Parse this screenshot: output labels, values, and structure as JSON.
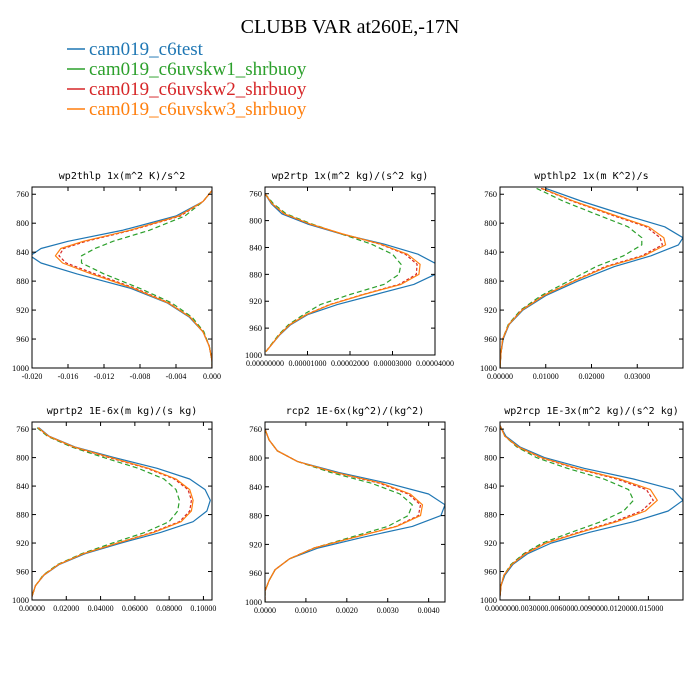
{
  "figure": {
    "title": "CLUBB VAR at260E,-17N",
    "legend": [
      {
        "name": "cam019_c6test",
        "color": "#1f77b4"
      },
      {
        "name": "cam019_c6uvskw1_shrbuoy",
        "color": "#2ca02c"
      },
      {
        "name": "cam019_c6uvskw2_shrbuoy",
        "color": "#d62728"
      },
      {
        "name": "cam019_c6uvskw3_shrbuoy",
        "color": "#ff7f0e"
      }
    ]
  },
  "chart_data": [
    {
      "type": "line",
      "title": "wp2thlp  1x(m^2 K)/s^2",
      "xlim": [
        -0.02,
        0.0
      ],
      "ylim": [
        1000,
        750
      ],
      "x_ticks": [
        "-0.020",
        "-0.016",
        "-0.012",
        "-0.008",
        "-0.004",
        "0.000"
      ],
      "x_tick_values": [
        -0.02,
        -0.016,
        -0.012,
        -0.008,
        -0.004,
        0.0
      ],
      "y_ticks": [
        "760",
        "800",
        "840",
        "880",
        "920",
        "960",
        "1000"
      ],
      "y_tick_values": [
        760,
        800,
        840,
        880,
        920,
        960,
        1000
      ],
      "y": [
        755,
        770,
        790,
        810,
        825,
        835,
        845,
        855,
        870,
        890,
        910,
        930,
        950,
        970,
        990,
        1000
      ],
      "series": [
        {
          "name": "cam019_c6test",
          "color": "#1f77b4",
          "dash": "",
          "values": [
            0.0,
            -0.001,
            -0.004,
            -0.01,
            -0.016,
            -0.019,
            -0.0202,
            -0.019,
            -0.015,
            -0.009,
            -0.005,
            -0.0025,
            -0.001,
            -0.0003,
            0.0,
            0.0
          ]
        },
        {
          "name": "cam019_c6uvskw1_shrbuoy",
          "color": "#2ca02c",
          "dash": "5,3",
          "values": [
            0.0,
            -0.001,
            -0.003,
            -0.007,
            -0.011,
            -0.013,
            -0.0145,
            -0.0145,
            -0.012,
            -0.008,
            -0.0045,
            -0.0022,
            -0.0009,
            -0.0003,
            0.0,
            0.0
          ]
        },
        {
          "name": "cam019_c6uvskw2_shrbuoy",
          "color": "#d62728",
          "dash": "3,2",
          "values": [
            0.0,
            -0.001,
            -0.0035,
            -0.009,
            -0.014,
            -0.0165,
            -0.017,
            -0.0162,
            -0.013,
            -0.0085,
            -0.0048,
            -0.0024,
            -0.001,
            -0.0003,
            0.0,
            0.0
          ]
        },
        {
          "name": "cam019_c6uvskw3_shrbuoy",
          "color": "#ff7f0e",
          "dash": "",
          "values": [
            0.0,
            -0.001,
            -0.0037,
            -0.0092,
            -0.0143,
            -0.0168,
            -0.0174,
            -0.0166,
            -0.0134,
            -0.0087,
            -0.0049,
            -0.0024,
            -0.001,
            -0.0003,
            0.0,
            0.0
          ]
        }
      ]
    },
    {
      "type": "line",
      "title": "wp2rtp  1x(m^2 kg)/(s^2 kg)",
      "xlim": [
        0.0,
        4e-05
      ],
      "ylim": [
        1000,
        750
      ],
      "x_ticks": [
        "0.00000000",
        "0.00001000",
        "0.00002000",
        "0.00003000",
        "0.00004000"
      ],
      "x_tick_values": [
        0.0,
        1e-05,
        2e-05,
        3e-05,
        4e-05
      ],
      "y_ticks": [
        "760",
        "800",
        "840",
        "880",
        "920",
        "960",
        "1000"
      ],
      "y_tick_values": [
        760,
        800,
        840,
        880,
        920,
        960,
        1000
      ],
      "y": [
        760,
        775,
        790,
        805,
        820,
        835,
        850,
        865,
        880,
        895,
        910,
        925,
        940,
        955,
        970,
        985,
        995
      ],
      "series": [
        {
          "name": "cam019_c6test",
          "color": "#1f77b4",
          "dash": "",
          "values": [
            0.0,
            1.5e-06,
            4e-06,
            1e-05,
            1.8e-05,
            2.8e-05,
            3.6e-05,
            4.05e-05,
            4e-05,
            3.5e-05,
            2.6e-05,
            1.7e-05,
            1e-05,
            6e-06,
            3.5e-06,
            1.5e-06,
            2e-07
          ]
        },
        {
          "name": "cam019_c6uvskw1_shrbuoy",
          "color": "#2ca02c",
          "dash": "5,3",
          "values": [
            0.0,
            2e-06,
            5e-06,
            1.1e-05,
            1.8e-05,
            2.5e-05,
            3e-05,
            3.2e-05,
            3.15e-05,
            2.8e-05,
            2e-05,
            1.3e-05,
            9e-06,
            5.5e-06,
            3.2e-06,
            1.4e-06,
            2e-07
          ]
        },
        {
          "name": "cam019_c6uvskw2_shrbuoy",
          "color": "#d62728",
          "dash": "3,2",
          "values": [
            0.0,
            1.7e-06,
            4.5e-06,
            1.05e-05,
            1.82e-05,
            2.7e-05,
            3.3e-05,
            3.58e-05,
            3.56e-05,
            3.15e-05,
            2.3e-05,
            1.52e-05,
            9.6e-06,
            5.8e-06,
            3.4e-06,
            1.5e-06,
            2e-07
          ]
        },
        {
          "name": "cam019_c6uvskw3_shrbuoy",
          "color": "#ff7f0e",
          "dash": "",
          "values": [
            0.0,
            1.7e-06,
            4.6e-06,
            1.06e-05,
            1.83e-05,
            2.72e-05,
            3.35e-05,
            3.65e-05,
            3.62e-05,
            3.2e-05,
            2.32e-05,
            1.54e-05,
            9.7e-06,
            5.8e-06,
            3.4e-06,
            1.5e-06,
            2e-07
          ]
        }
      ]
    },
    {
      "type": "line",
      "title": "wpthlp2  1x(m K^2)/s",
      "xlim": [
        0.0,
        0.04
      ],
      "ylim": [
        1000,
        750
      ],
      "x_ticks": [
        "0.00000",
        "0.01000",
        "0.02000",
        "0.03000"
      ],
      "x_tick_values": [
        0.0,
        0.01,
        0.02,
        0.03
      ],
      "y_ticks": [
        "760",
        "800",
        "840",
        "880",
        "920",
        "960",
        "1000"
      ],
      "y_tick_values": [
        760,
        800,
        840,
        880,
        920,
        960,
        1000
      ],
      "y": [
        752,
        770,
        790,
        805,
        820,
        830,
        845,
        860,
        880,
        900,
        920,
        940,
        960,
        980,
        1000
      ],
      "series": [
        {
          "name": "cam019_c6test",
          "color": "#1f77b4",
          "dash": "",
          "values": [
            0.01,
            0.018,
            0.028,
            0.036,
            0.04,
            0.039,
            0.033,
            0.025,
            0.017,
            0.01,
            0.005,
            0.002,
            0.0007,
            0.0002,
            0.0
          ]
        },
        {
          "name": "cam019_c6uvskw1_shrbuoy",
          "color": "#2ca02c",
          "dash": "5,3",
          "values": [
            0.008,
            0.014,
            0.022,
            0.028,
            0.031,
            0.031,
            0.027,
            0.021,
            0.015,
            0.009,
            0.0045,
            0.0018,
            0.0006,
            0.0002,
            0.0
          ]
        },
        {
          "name": "cam019_c6uvskw2_shrbuoy",
          "color": "#d62728",
          "dash": "3,2",
          "values": [
            0.009,
            0.016,
            0.025,
            0.032,
            0.035,
            0.0355,
            0.031,
            0.023,
            0.016,
            0.0095,
            0.0047,
            0.0019,
            0.0006,
            0.0002,
            0.0
          ]
        },
        {
          "name": "cam019_c6uvskw3_shrbuoy",
          "color": "#ff7f0e",
          "dash": "",
          "values": [
            0.0092,
            0.0163,
            0.0255,
            0.0325,
            0.0358,
            0.0362,
            0.0315,
            0.0235,
            0.0162,
            0.0096,
            0.0048,
            0.0019,
            0.0006,
            0.0002,
            0.0
          ]
        }
      ]
    },
    {
      "type": "line",
      "title": "wprtp2  1E-6x(m kg)/(s kg)",
      "xlim": [
        0.0,
        0.105
      ],
      "ylim": [
        1000,
        750
      ],
      "x_ticks": [
        "0.00000",
        "0.02000",
        "0.04000",
        "0.06000",
        "0.08000",
        "0.10000"
      ],
      "x_tick_values": [
        0.0,
        0.02,
        0.04,
        0.06,
        0.08,
        0.1
      ],
      "y_ticks": [
        "760",
        "800",
        "840",
        "880",
        "920",
        "960",
        "1000"
      ],
      "y_tick_values": [
        760,
        800,
        840,
        880,
        920,
        960,
        1000
      ],
      "y": [
        758,
        770,
        785,
        800,
        815,
        830,
        845,
        860,
        875,
        890,
        905,
        920,
        935,
        950,
        965,
        980,
        995
      ],
      "series": [
        {
          "name": "cam019_c6test",
          "color": "#1f77b4",
          "dash": "",
          "values": [
            0.004,
            0.01,
            0.025,
            0.048,
            0.073,
            0.092,
            0.101,
            0.104,
            0.102,
            0.094,
            0.075,
            0.052,
            0.031,
            0.016,
            0.007,
            0.002,
            0.0
          ]
        },
        {
          "name": "cam019_c6uvskw1_shrbuoy",
          "color": "#2ca02c",
          "dash": "5,3",
          "values": [
            0.003,
            0.009,
            0.023,
            0.042,
            0.062,
            0.077,
            0.084,
            0.086,
            0.085,
            0.08,
            0.066,
            0.047,
            0.029,
            0.015,
            0.0065,
            0.002,
            0.0
          ]
        },
        {
          "name": "cam019_c6uvskw2_shrbuoy",
          "color": "#d62728",
          "dash": "3,2",
          "values": [
            0.0035,
            0.0095,
            0.024,
            0.045,
            0.067,
            0.083,
            0.091,
            0.093,
            0.092,
            0.086,
            0.07,
            0.05,
            0.03,
            0.0155,
            0.0068,
            0.002,
            0.0
          ]
        },
        {
          "name": "cam019_c6uvskw3_shrbuoy",
          "color": "#ff7f0e",
          "dash": "",
          "values": [
            0.0036,
            0.0097,
            0.0245,
            0.046,
            0.068,
            0.084,
            0.092,
            0.094,
            0.093,
            0.087,
            0.071,
            0.05,
            0.03,
            0.0156,
            0.0068,
            0.002,
            0.0
          ]
        }
      ]
    },
    {
      "type": "line",
      "title": "rcp2  1E-6x(kg^2)/(kg^2)",
      "xlim": [
        0.0,
        0.0044
      ],
      "ylim": [
        1000,
        750
      ],
      "x_ticks": [
        "0.0000",
        "0.0010",
        "0.0020",
        "0.0030",
        "0.0040"
      ],
      "x_tick_values": [
        0.0,
        0.001,
        0.002,
        0.003,
        0.004
      ],
      "y_ticks": [
        "760",
        "800",
        "840",
        "880",
        "920",
        "960",
        "1000"
      ],
      "y_tick_values": [
        760,
        800,
        840,
        880,
        920,
        960,
        1000
      ],
      "y": [
        760,
        775,
        790,
        805,
        820,
        835,
        850,
        865,
        880,
        895,
        910,
        925,
        940,
        955,
        970,
        985,
        1000
      ],
      "series": [
        {
          "name": "cam019_c6test",
          "color": "#1f77b4",
          "dash": "",
          "values": [
            0.0,
            0.0001,
            0.0003,
            0.0008,
            0.0018,
            0.003,
            0.004,
            0.0044,
            0.0043,
            0.0036,
            0.0024,
            0.0013,
            0.0006,
            0.00025,
            0.0001,
            0.0,
            0.0
          ]
        },
        {
          "name": "cam019_c6uvskw1_shrbuoy",
          "color": "#2ca02c",
          "dash": "5,3",
          "values": [
            0.0,
            0.0001,
            0.0003,
            0.0008,
            0.0016,
            0.0026,
            0.0033,
            0.0036,
            0.0035,
            0.003,
            0.0021,
            0.0012,
            0.0006,
            0.00025,
            0.0001,
            0.0,
            0.0
          ]
        },
        {
          "name": "cam019_c6uvskw2_shrbuoy",
          "color": "#d62728",
          "dash": "3,2",
          "values": [
            0.0,
            0.0001,
            0.0003,
            0.0008,
            0.0017,
            0.0028,
            0.0035,
            0.0038,
            0.00375,
            0.0032,
            0.0022,
            0.0012,
            0.0006,
            0.00025,
            0.0001,
            0.0,
            0.0
          ]
        },
        {
          "name": "cam019_c6uvskw3_shrbuoy",
          "color": "#ff7f0e",
          "dash": "",
          "values": [
            0.0,
            0.0001,
            0.0003,
            0.0008,
            0.00172,
            0.00285,
            0.00355,
            0.00385,
            0.0038,
            0.00322,
            0.0022,
            0.0012,
            0.0006,
            0.00025,
            0.0001,
            0.0,
            0.0
          ]
        }
      ]
    },
    {
      "type": "line",
      "title": "wp2rcp  1E-3x(m^2 kg)/(s^2 kg)",
      "xlim": [
        0.0,
        0.0185
      ],
      "ylim": [
        1000,
        750
      ],
      "x_ticks": [
        "0.000000",
        "0.003000",
        "0.006000",
        "0.009000",
        "0.012000",
        "0.015000"
      ],
      "x_tick_values": [
        0.0,
        0.003,
        0.006,
        0.009,
        0.012,
        0.015
      ],
      "y_ticks": [
        "760",
        "800",
        "840",
        "880",
        "920",
        "960",
        "1000"
      ],
      "y_tick_values": [
        760,
        800,
        840,
        880,
        920,
        960,
        1000
      ],
      "y": [
        755,
        770,
        785,
        800,
        815,
        830,
        845,
        860,
        875,
        890,
        905,
        920,
        935,
        950,
        965,
        980,
        995
      ],
      "series": [
        {
          "name": "cam019_c6test",
          "color": "#1f77b4",
          "dash": "",
          "values": [
            0.0,
            0.0006,
            0.002,
            0.0045,
            0.0085,
            0.0135,
            0.0175,
            0.0185,
            0.017,
            0.0135,
            0.009,
            0.0052,
            0.0028,
            0.0013,
            0.0005,
            0.0001,
            0.0
          ]
        },
        {
          "name": "cam019_c6uvskw1_shrbuoy",
          "color": "#2ca02c",
          "dash": "5,3",
          "values": [
            0.0,
            0.0005,
            0.0017,
            0.0037,
            0.0068,
            0.0105,
            0.013,
            0.0135,
            0.0125,
            0.0102,
            0.0072,
            0.0043,
            0.0024,
            0.0011,
            0.0004,
            0.0001,
            0.0
          ]
        },
        {
          "name": "cam019_c6uvskw2_shrbuoy",
          "color": "#d62728",
          "dash": "3,2",
          "values": [
            0.0,
            0.0005,
            0.0018,
            0.0041,
            0.0076,
            0.0118,
            0.0148,
            0.0155,
            0.0143,
            0.0115,
            0.0079,
            0.0046,
            0.0025,
            0.0012,
            0.0004,
            0.0001,
            0.0
          ]
        },
        {
          "name": "cam019_c6uvskw3_shrbuoy",
          "color": "#ff7f0e",
          "dash": "",
          "values": [
            0.0,
            0.0005,
            0.00185,
            0.0042,
            0.0078,
            0.0121,
            0.0152,
            0.0159,
            0.0147,
            0.0118,
            0.0081,
            0.0047,
            0.0026,
            0.0012,
            0.0004,
            0.0001,
            0.0
          ]
        }
      ]
    }
  ]
}
